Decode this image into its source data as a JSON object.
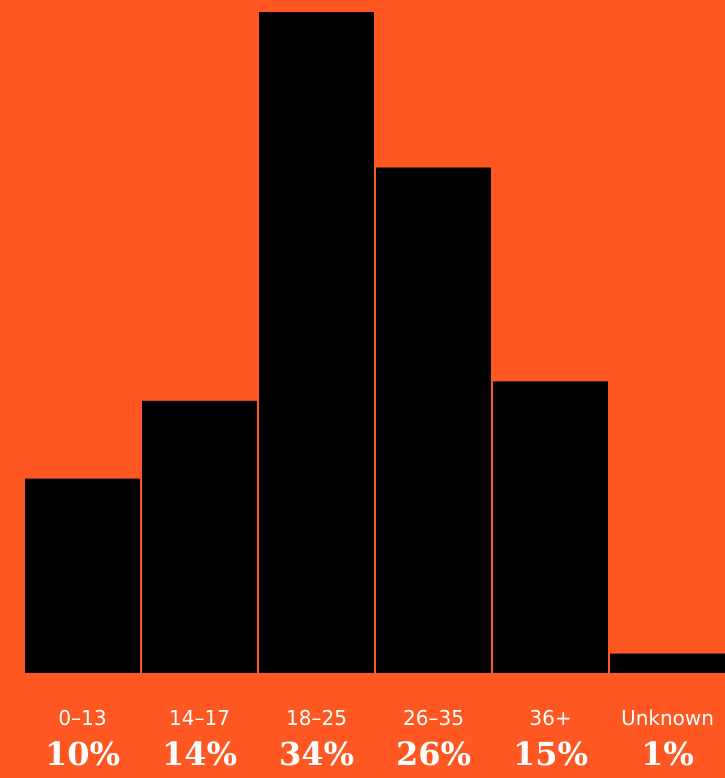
{
  "background_color": "#FF5722",
  "bar_color": "#000000",
  "text_color": "#FFFFFF",
  "chart_data": {
    "type": "bar",
    "categories": [
      "0–13",
      "14–17",
      "18–25",
      "26–35",
      "36+",
      "Unknown"
    ],
    "values": [
      10,
      14,
      34,
      26,
      15,
      1
    ],
    "value_labels": [
      "10%",
      "14%",
      "34%",
      "26%",
      "15%",
      "1%"
    ],
    "title": "",
    "xlabel": "",
    "ylabel": "",
    "ylim": [
      0,
      34
    ],
    "grid": false,
    "legend": "none"
  }
}
